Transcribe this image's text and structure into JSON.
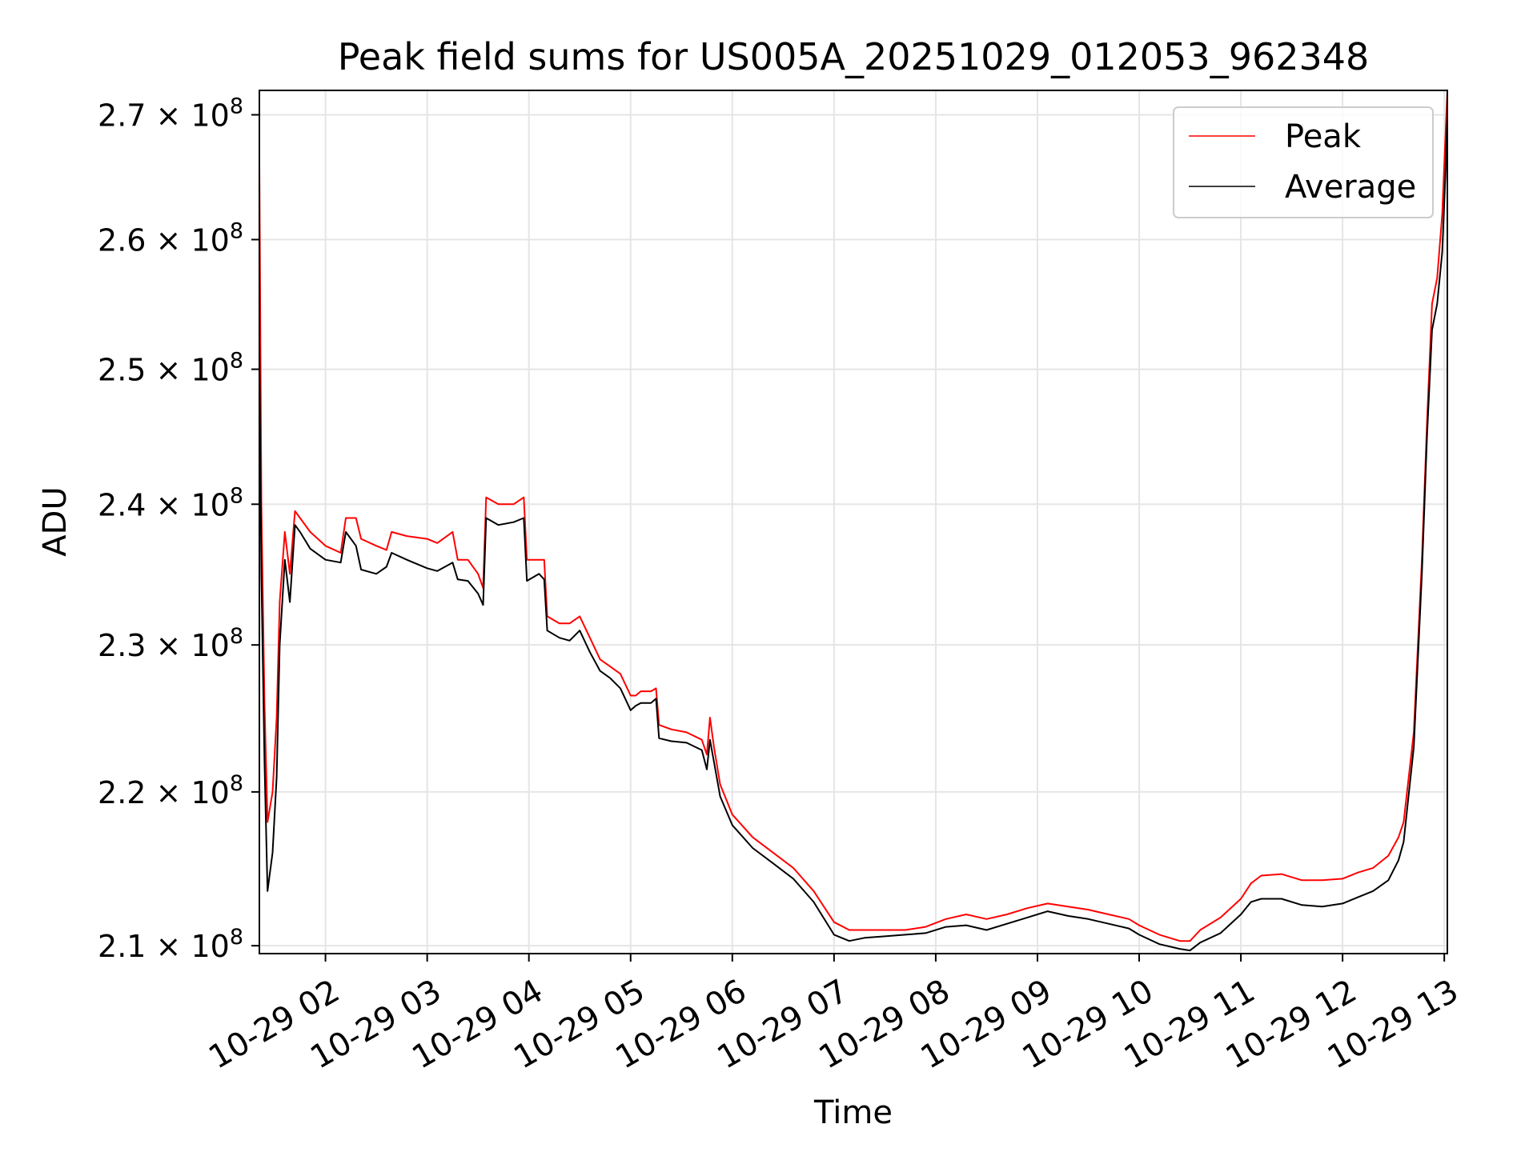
{
  "chart_data": {
    "type": "line",
    "title": "Peak field sums for US005A_20251029_012053_962348",
    "xlabel": "Time",
    "ylabel": "ADU",
    "x_ticks": [
      "10-29 02",
      "10-29 03",
      "10-29 04",
      "10-29 05",
      "10-29 06",
      "10-29 07",
      "10-29 08",
      "10-29 09",
      "10-29 10",
      "10-29 11",
      "10-29 12",
      "10-29 13"
    ],
    "x_tick_hours": [
      2,
      3,
      4,
      5,
      6,
      7,
      8,
      9,
      10,
      11,
      12,
      13
    ],
    "xlim_hours": [
      1.35,
      13.03
    ],
    "y_scale": "log",
    "ylim": [
      209500000,
      272000000
    ],
    "y_ticks": [
      {
        "value": 210000000,
        "mantissa": "2.1",
        "exponent": "8"
      },
      {
        "value": 220000000,
        "mantissa": "2.2",
        "exponent": "8"
      },
      {
        "value": 230000000,
        "mantissa": "2.3",
        "exponent": "8"
      },
      {
        "value": 240000000,
        "mantissa": "2.4",
        "exponent": "8"
      },
      {
        "value": 250000000,
        "mantissa": "2.5",
        "exponent": "8"
      },
      {
        "value": 260000000,
        "mantissa": "2.6",
        "exponent": "8"
      },
      {
        "value": 270000000,
        "mantissa": "2.7",
        "exponent": "8"
      }
    ],
    "y_tick_times_label": "× 10",
    "grid": true,
    "legend_position": "top-right",
    "series": [
      {
        "name": "Peak",
        "color": "#ff0000",
        "points": [
          [
            1.35,
            266000000
          ],
          [
            1.37,
            240000000
          ],
          [
            1.4,
            226000000
          ],
          [
            1.43,
            218000000
          ],
          [
            1.48,
            220000000
          ],
          [
            1.52,
            225000000
          ],
          [
            1.55,
            233000000
          ],
          [
            1.6,
            238000000
          ],
          [
            1.65,
            235000000
          ],
          [
            1.7,
            239500000
          ],
          [
            1.75,
            239000000
          ],
          [
            1.85,
            238000000
          ],
          [
            2.0,
            237000000
          ],
          [
            2.15,
            236500000
          ],
          [
            2.2,
            239000000
          ],
          [
            2.3,
            239000000
          ],
          [
            2.35,
            237500000
          ],
          [
            2.5,
            237000000
          ],
          [
            2.6,
            236700000
          ],
          [
            2.65,
            238000000
          ],
          [
            2.8,
            237700000
          ],
          [
            3.0,
            237500000
          ],
          [
            3.1,
            237200000
          ],
          [
            3.25,
            238000000
          ],
          [
            3.3,
            236000000
          ],
          [
            3.4,
            236000000
          ],
          [
            3.5,
            235000000
          ],
          [
            3.55,
            234000000
          ],
          [
            3.58,
            240500000
          ],
          [
            3.7,
            240000000
          ],
          [
            3.85,
            240000000
          ],
          [
            3.95,
            240500000
          ],
          [
            3.98,
            236000000
          ],
          [
            4.1,
            236000000
          ],
          [
            4.15,
            236000000
          ],
          [
            4.18,
            232000000
          ],
          [
            4.3,
            231500000
          ],
          [
            4.4,
            231500000
          ],
          [
            4.5,
            232000000
          ],
          [
            4.6,
            230500000
          ],
          [
            4.7,
            229000000
          ],
          [
            4.8,
            228500000
          ],
          [
            4.9,
            228000000
          ],
          [
            5.0,
            226500000
          ],
          [
            5.05,
            226500000
          ],
          [
            5.1,
            226800000
          ],
          [
            5.2,
            226800000
          ],
          [
            5.25,
            227000000
          ],
          [
            5.28,
            224500000
          ],
          [
            5.4,
            224200000
          ],
          [
            5.55,
            224000000
          ],
          [
            5.7,
            223500000
          ],
          [
            5.75,
            222500000
          ],
          [
            5.78,
            225000000
          ],
          [
            5.82,
            223000000
          ],
          [
            5.88,
            220500000
          ],
          [
            6.0,
            218500000
          ],
          [
            6.2,
            217000000
          ],
          [
            6.4,
            216000000
          ],
          [
            6.6,
            215000000
          ],
          [
            6.8,
            213500000
          ],
          [
            7.0,
            211500000
          ],
          [
            7.15,
            211000000
          ],
          [
            7.3,
            211000000
          ],
          [
            7.5,
            211000000
          ],
          [
            7.7,
            211000000
          ],
          [
            7.9,
            211200000
          ],
          [
            8.1,
            211700000
          ],
          [
            8.3,
            212000000
          ],
          [
            8.5,
            211700000
          ],
          [
            8.7,
            212000000
          ],
          [
            8.9,
            212400000
          ],
          [
            9.1,
            212700000
          ],
          [
            9.3,
            212500000
          ],
          [
            9.5,
            212300000
          ],
          [
            9.7,
            212000000
          ],
          [
            9.9,
            211700000
          ],
          [
            10.0,
            211300000
          ],
          [
            10.2,
            210700000
          ],
          [
            10.4,
            210300000
          ],
          [
            10.5,
            210300000
          ],
          [
            10.6,
            211000000
          ],
          [
            10.8,
            211800000
          ],
          [
            11.0,
            213000000
          ],
          [
            11.1,
            214000000
          ],
          [
            11.2,
            214500000
          ],
          [
            11.4,
            214600000
          ],
          [
            11.6,
            214200000
          ],
          [
            11.8,
            214200000
          ],
          [
            12.0,
            214300000
          ],
          [
            12.15,
            214700000
          ],
          [
            12.3,
            215000000
          ],
          [
            12.45,
            215800000
          ],
          [
            12.55,
            217000000
          ],
          [
            12.6,
            218000000
          ],
          [
            12.7,
            224000000
          ],
          [
            12.78,
            236000000
          ],
          [
            12.83,
            246000000
          ],
          [
            12.88,
            255000000
          ],
          [
            12.93,
            257000000
          ],
          [
            12.98,
            262000000
          ],
          [
            13.01,
            268000000
          ],
          [
            13.03,
            272000000
          ]
        ]
      },
      {
        "name": "Average",
        "color": "#000000",
        "points": [
          [
            1.35,
            252000000
          ],
          [
            1.37,
            235000000
          ],
          [
            1.4,
            222000000
          ],
          [
            1.43,
            213500000
          ],
          [
            1.48,
            216000000
          ],
          [
            1.52,
            221000000
          ],
          [
            1.55,
            230000000
          ],
          [
            1.6,
            236000000
          ],
          [
            1.65,
            233000000
          ],
          [
            1.7,
            238500000
          ],
          [
            1.75,
            238000000
          ],
          [
            1.85,
            236800000
          ],
          [
            2.0,
            236000000
          ],
          [
            2.15,
            235800000
          ],
          [
            2.2,
            238000000
          ],
          [
            2.3,
            237000000
          ],
          [
            2.35,
            235300000
          ],
          [
            2.5,
            235000000
          ],
          [
            2.6,
            235500000
          ],
          [
            2.65,
            236500000
          ],
          [
            2.8,
            236000000
          ],
          [
            3.0,
            235400000
          ],
          [
            3.1,
            235200000
          ],
          [
            3.25,
            235800000
          ],
          [
            3.3,
            234600000
          ],
          [
            3.4,
            234500000
          ],
          [
            3.5,
            233600000
          ],
          [
            3.55,
            232800000
          ],
          [
            3.58,
            239000000
          ],
          [
            3.7,
            238500000
          ],
          [
            3.85,
            238700000
          ],
          [
            3.95,
            239000000
          ],
          [
            3.98,
            234500000
          ],
          [
            4.1,
            235000000
          ],
          [
            4.15,
            234600000
          ],
          [
            4.18,
            231000000
          ],
          [
            4.3,
            230500000
          ],
          [
            4.4,
            230300000
          ],
          [
            4.5,
            231000000
          ],
          [
            4.6,
            229500000
          ],
          [
            4.7,
            228200000
          ],
          [
            4.8,
            227700000
          ],
          [
            4.9,
            227000000
          ],
          [
            5.0,
            225500000
          ],
          [
            5.05,
            225800000
          ],
          [
            5.1,
            226000000
          ],
          [
            5.2,
            226000000
          ],
          [
            5.25,
            226300000
          ],
          [
            5.28,
            223600000
          ],
          [
            5.4,
            223400000
          ],
          [
            5.55,
            223300000
          ],
          [
            5.7,
            222800000
          ],
          [
            5.75,
            221500000
          ],
          [
            5.78,
            223500000
          ],
          [
            5.82,
            222000000
          ],
          [
            5.88,
            219700000
          ],
          [
            6.0,
            217800000
          ],
          [
            6.2,
            216300000
          ],
          [
            6.4,
            215300000
          ],
          [
            6.6,
            214300000
          ],
          [
            6.8,
            212800000
          ],
          [
            7.0,
            210700000
          ],
          [
            7.15,
            210300000
          ],
          [
            7.3,
            210500000
          ],
          [
            7.5,
            210600000
          ],
          [
            7.7,
            210700000
          ],
          [
            7.9,
            210800000
          ],
          [
            8.1,
            211200000
          ],
          [
            8.3,
            211300000
          ],
          [
            8.5,
            211000000
          ],
          [
            8.7,
            211400000
          ],
          [
            8.9,
            211800000
          ],
          [
            9.1,
            212200000
          ],
          [
            9.3,
            211900000
          ],
          [
            9.5,
            211700000
          ],
          [
            9.7,
            211400000
          ],
          [
            9.9,
            211100000
          ],
          [
            10.0,
            210700000
          ],
          [
            10.2,
            210100000
          ],
          [
            10.4,
            209800000
          ],
          [
            10.5,
            209700000
          ],
          [
            10.6,
            210200000
          ],
          [
            10.8,
            210800000
          ],
          [
            11.0,
            212000000
          ],
          [
            11.1,
            212800000
          ],
          [
            11.2,
            213000000
          ],
          [
            11.4,
            213000000
          ],
          [
            11.6,
            212600000
          ],
          [
            11.8,
            212500000
          ],
          [
            12.0,
            212700000
          ],
          [
            12.15,
            213100000
          ],
          [
            12.3,
            213500000
          ],
          [
            12.45,
            214200000
          ],
          [
            12.55,
            215500000
          ],
          [
            12.6,
            216700000
          ],
          [
            12.7,
            223000000
          ],
          [
            12.78,
            235000000
          ],
          [
            12.83,
            245000000
          ],
          [
            12.88,
            253000000
          ],
          [
            12.93,
            255000000
          ],
          [
            12.98,
            259000000
          ],
          [
            13.01,
            265000000
          ],
          [
            13.03,
            270000000
          ]
        ]
      }
    ]
  }
}
